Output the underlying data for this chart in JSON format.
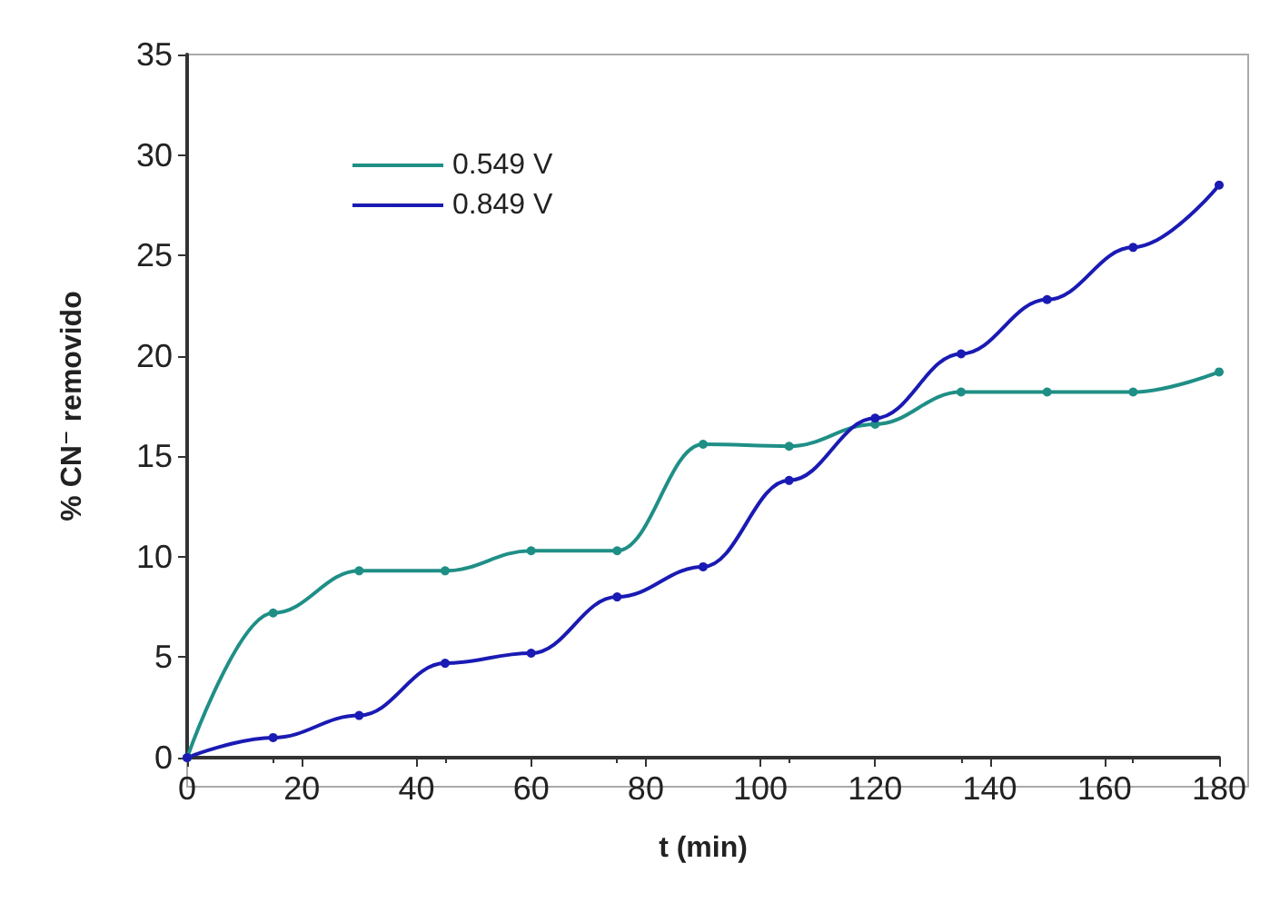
{
  "chart_data": {
    "type": "line",
    "xlabel": "t (min)",
    "ylabel": "% CN⁻ removido",
    "x": [
      0,
      15,
      30,
      45,
      60,
      75,
      90,
      105,
      120,
      135,
      150,
      165,
      180
    ],
    "series": [
      {
        "name": "0.549 V",
        "color": "#1f8f86",
        "values": [
          0,
          7.2,
          9.3,
          9.3,
          10.3,
          10.3,
          15.6,
          15.5,
          16.6,
          18.2,
          18.2,
          18.2,
          19.2
        ]
      },
      {
        "name": "0.849 V",
        "color": "#1a1ab4",
        "values": [
          0,
          1.0,
          2.1,
          4.7,
          5.2,
          8.0,
          9.5,
          13.8,
          16.9,
          20.1,
          22.8,
          25.4,
          28.5
        ]
      }
    ],
    "xlim": [
      0,
      180
    ],
    "xticks": [
      0,
      20,
      40,
      60,
      80,
      100,
      120,
      140,
      160,
      180
    ],
    "ylim": [
      0,
      35
    ],
    "yticks": [
      0,
      5,
      10,
      15,
      20,
      25,
      30,
      35
    ],
    "legend": "top left",
    "marker": "circle",
    "line_style": "solid",
    "grid": false
  }
}
